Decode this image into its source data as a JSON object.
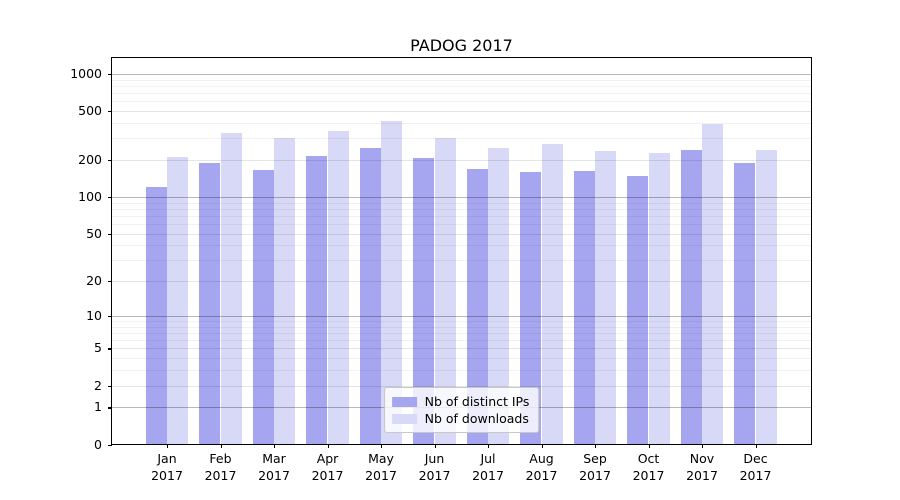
{
  "chart_data": {
    "type": "bar",
    "title": "PADOG 2017",
    "months": [
      "Jan",
      "Feb",
      "Mar",
      "Apr",
      "May",
      "Jun",
      "Jul",
      "Aug",
      "Sep",
      "Oct",
      "Nov",
      "Dec"
    ],
    "year": "2017",
    "series": [
      {
        "name": "Nb of distinct IPs",
        "color": "#a5a5f0",
        "values": [
          120,
          188,
          165,
          215,
          250,
          207,
          170,
          160,
          163,
          148,
          240,
          188
        ]
      },
      {
        "name": "Nb of downloads",
        "color": "#d8d8f7",
        "values": [
          210,
          330,
          305,
          345,
          415,
          305,
          250,
          270,
          237,
          228,
          395,
          242
        ]
      }
    ],
    "xlabel": "",
    "ylabel": "",
    "y_scale": "log10(1+x)",
    "ylim": [
      0,
      1350
    ],
    "y_ticks": [
      0,
      1,
      2,
      5,
      10,
      20,
      50,
      100,
      200,
      500,
      1000
    ],
    "y_tick_labels": [
      "0",
      "1",
      "2",
      "5",
      "10",
      "20",
      "50",
      "100",
      "200",
      "500",
      "1000"
    ],
    "y_decade_gridlines": [
      1,
      10,
      100,
      1000
    ],
    "y_major_gridlines": [
      2,
      5,
      20,
      50,
      200,
      500
    ],
    "y_minor_gridlines": [
      3,
      4,
      6,
      7,
      8,
      9,
      30,
      40,
      60,
      70,
      80,
      90,
      300,
      400,
      600,
      700,
      800,
      900
    ],
    "grid": true,
    "legend_position": "lower center",
    "colors": {
      "distinct_ips": "#a5a5f0",
      "downloads": "#d8d8f7",
      "spine": "#000000",
      "background": "#ffffff",
      "legend_border": "#c8c8c8"
    }
  }
}
